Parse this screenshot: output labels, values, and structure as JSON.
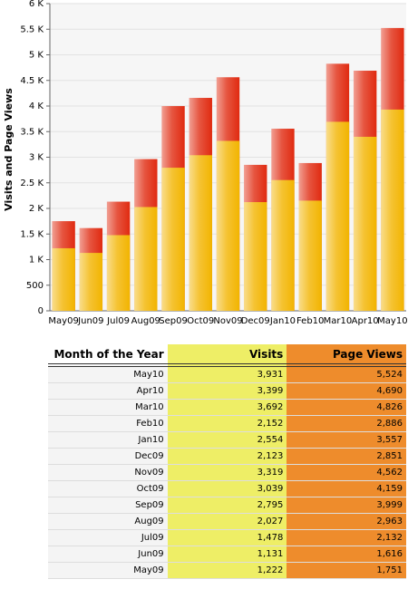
{
  "chart_data": {
    "type": "bar",
    "ylabel": "Visits and Page Views",
    "categories": [
      "May09",
      "Jun09",
      "Jul09",
      "Aug09",
      "Sep09",
      "Oct09",
      "Nov09",
      "Dec09",
      "Jan10",
      "Feb10",
      "Mar10",
      "Apr10",
      "May10"
    ],
    "series": [
      {
        "name": "Visits",
        "color": "#f2b400",
        "values": [
          1222,
          1131,
          1478,
          2027,
          2795,
          3039,
          3319,
          2123,
          2554,
          2152,
          3692,
          3399,
          3931
        ],
        "value_labels": [
          "1,222",
          "1,131",
          "1,478",
          "2,027",
          "2,795",
          "3,039",
          "3,319",
          "2,123",
          "2,554",
          "2,152",
          "3,692",
          "3,399",
          "3,931"
        ]
      },
      {
        "name": "Page Views",
        "color": "#e02a10",
        "values": [
          1751,
          1616,
          2132,
          2963,
          3999,
          4159,
          4562,
          2851,
          3557,
          2886,
          4826,
          4690,
          5524
        ],
        "value_labels": [
          "1,751",
          "1,616",
          "2,132",
          "2,963",
          "3,999",
          "4,159",
          "4,562",
          "2,851",
          "3,557",
          "2,886",
          "4,826",
          "4,690",
          "5,524"
        ]
      }
    ],
    "ylim": [
      0,
      6000
    ],
    "yticks": [
      0,
      500,
      {
        "value": 1000,
        "label": "1 K"
      },
      {
        "value": 1500,
        "label": "1.5 K"
      },
      {
        "value": 2000,
        "label": "2 K"
      },
      {
        "value": 2500,
        "label": "2.5 K"
      },
      {
        "value": 3000,
        "label": "3 K"
      },
      {
        "value": 3500,
        "label": "3.5 K"
      },
      {
        "value": 4000,
        "label": "4 K"
      },
      {
        "value": 4500,
        "label": "4.5 K"
      },
      {
        "value": 5000,
        "label": "5 K"
      },
      {
        "value": 5500,
        "label": "5.5 K"
      },
      {
        "value": 6000,
        "label": "6 K"
      }
    ],
    "grid": true
  },
  "table": {
    "month_header": "Month of the Year"
  }
}
